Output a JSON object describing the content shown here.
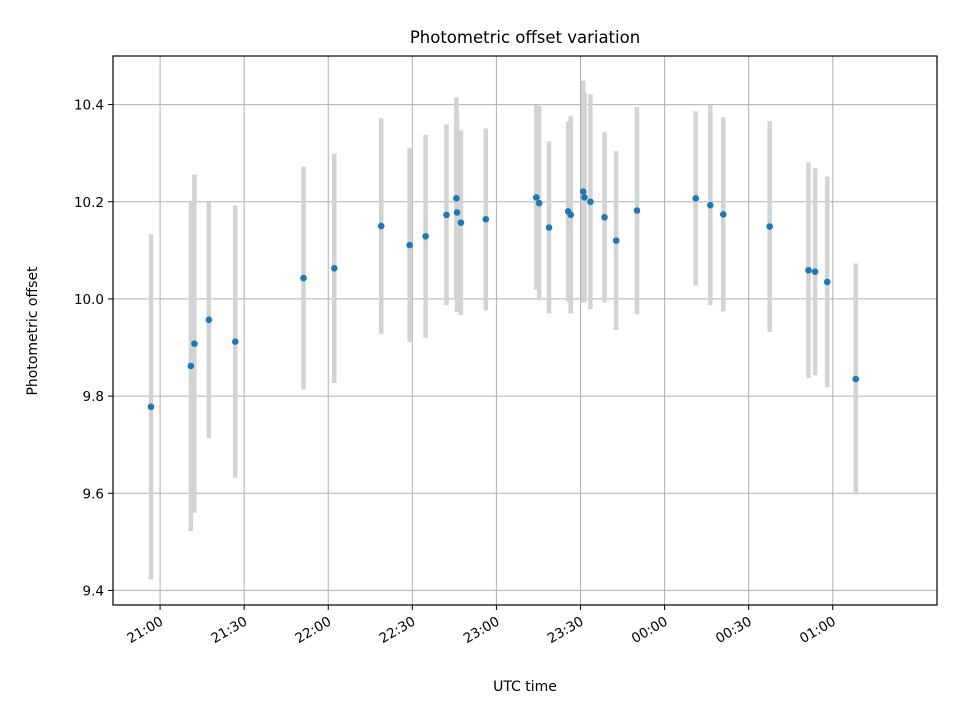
{
  "chart_data": {
    "type": "scatter",
    "title": "Photometric offset variation",
    "xlabel": "UTC time",
    "ylabel": "Photometric offset",
    "x_unit": "UTC time of night (hours past 20:00, times after midnight continue past 24:00)",
    "xlim": [
      20.72,
      25.62
    ],
    "ylim": [
      9.37,
      10.5
    ],
    "x_ticks": [
      {
        "value": 21.0,
        "label": "21:00"
      },
      {
        "value": 21.5,
        "label": "21:30"
      },
      {
        "value": 22.0,
        "label": "22:00"
      },
      {
        "value": 22.5,
        "label": "22:30"
      },
      {
        "value": 23.0,
        "label": "23:00"
      },
      {
        "value": 23.5,
        "label": "23:30"
      },
      {
        "value": 24.0,
        "label": "00:00"
      },
      {
        "value": 24.5,
        "label": "00:30"
      },
      {
        "value": 25.0,
        "label": "01:00"
      }
    ],
    "y_ticks": [
      {
        "value": 9.4,
        "label": "9.4"
      },
      {
        "value": 9.6,
        "label": "9.6"
      },
      {
        "value": 9.8,
        "label": "9.8"
      },
      {
        "value": 10.0,
        "label": "10.0"
      },
      {
        "value": 10.2,
        "label": "10.2"
      },
      {
        "value": 10.4,
        "label": "10.4"
      }
    ],
    "grid": true,
    "marker_color": "#1f77b4",
    "errorbar_color": "#d3d3d3",
    "points": [
      {
        "x": 20.946,
        "y": 9.778,
        "err": 0.355
      },
      {
        "x": 21.183,
        "y": 9.862,
        "err": 0.34
      },
      {
        "x": 21.204,
        "y": 9.908,
        "err": 0.348
      },
      {
        "x": 21.29,
        "y": 9.957,
        "err": 0.243
      },
      {
        "x": 21.447,
        "y": 9.912,
        "err": 0.28
      },
      {
        "x": 21.853,
        "y": 10.043,
        "err": 0.229
      },
      {
        "x": 22.036,
        "y": 10.063,
        "err": 0.236
      },
      {
        "x": 22.315,
        "y": 10.15,
        "err": 0.222
      },
      {
        "x": 22.484,
        "y": 10.111,
        "err": 0.2
      },
      {
        "x": 22.579,
        "y": 10.129,
        "err": 0.209
      },
      {
        "x": 22.703,
        "y": 10.173,
        "err": 0.186
      },
      {
        "x": 22.762,
        "y": 10.207,
        "err": 0.208
      },
      {
        "x": 22.766,
        "y": 10.178,
        "err": 0.205
      },
      {
        "x": 22.789,
        "y": 10.157,
        "err": 0.19
      },
      {
        "x": 22.937,
        "y": 10.164,
        "err": 0.187
      },
      {
        "x": 23.237,
        "y": 10.209,
        "err": 0.19
      },
      {
        "x": 23.254,
        "y": 10.197,
        "err": 0.2
      },
      {
        "x": 23.313,
        "y": 10.147,
        "err": 0.177
      },
      {
        "x": 23.427,
        "y": 10.18,
        "err": 0.185
      },
      {
        "x": 23.442,
        "y": 10.173,
        "err": 0.203
      },
      {
        "x": 23.516,
        "y": 10.221,
        "err": 0.228
      },
      {
        "x": 23.524,
        "y": 10.209,
        "err": 0.215
      },
      {
        "x": 23.559,
        "y": 10.2,
        "err": 0.221
      },
      {
        "x": 23.643,
        "y": 10.168,
        "err": 0.175
      },
      {
        "x": 23.712,
        "y": 10.12,
        "err": 0.184
      },
      {
        "x": 23.836,
        "y": 10.182,
        "err": 0.213
      },
      {
        "x": 24.185,
        "y": 10.207,
        "err": 0.179
      },
      {
        "x": 24.272,
        "y": 10.193,
        "err": 0.206
      },
      {
        "x": 24.349,
        "y": 10.174,
        "err": 0.2
      },
      {
        "x": 24.625,
        "y": 10.149,
        "err": 0.217
      },
      {
        "x": 24.856,
        "y": 10.059,
        "err": 0.222
      },
      {
        "x": 24.895,
        "y": 10.056,
        "err": 0.213
      },
      {
        "x": 24.967,
        "y": 10.035,
        "err": 0.217
      },
      {
        "x": 25.137,
        "y": 9.835,
        "err": 0.238
      }
    ]
  }
}
